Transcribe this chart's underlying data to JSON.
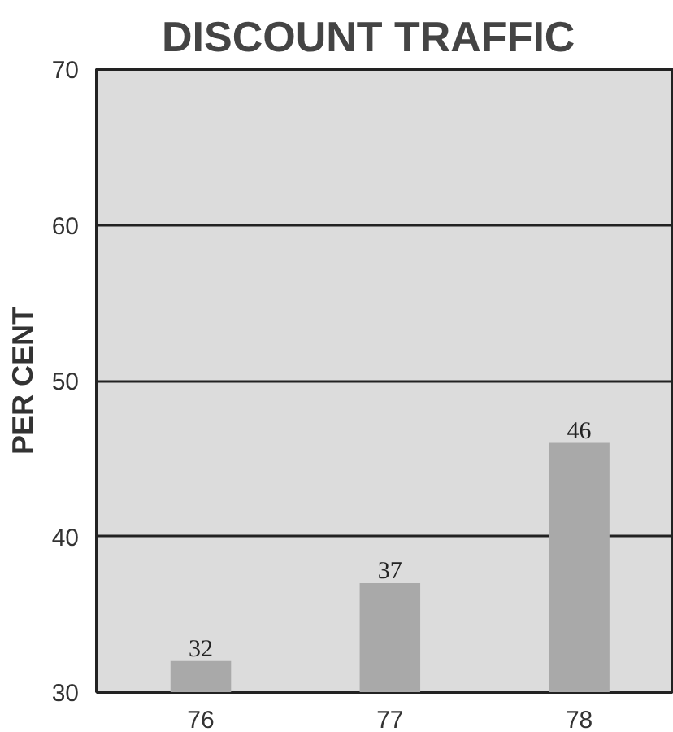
{
  "chart_data": {
    "type": "bar",
    "title": "DISCOUNT TRAFFIC",
    "ylabel": "PER CENT",
    "categories": [
      "76",
      "77",
      "78"
    ],
    "values": [
      32,
      37,
      46
    ],
    "color": "#a9a9a9",
    "ylim": [
      30,
      70
    ],
    "yticks": [
      30,
      40,
      50,
      60,
      70
    ],
    "grid": "y",
    "data_labels": true
  }
}
